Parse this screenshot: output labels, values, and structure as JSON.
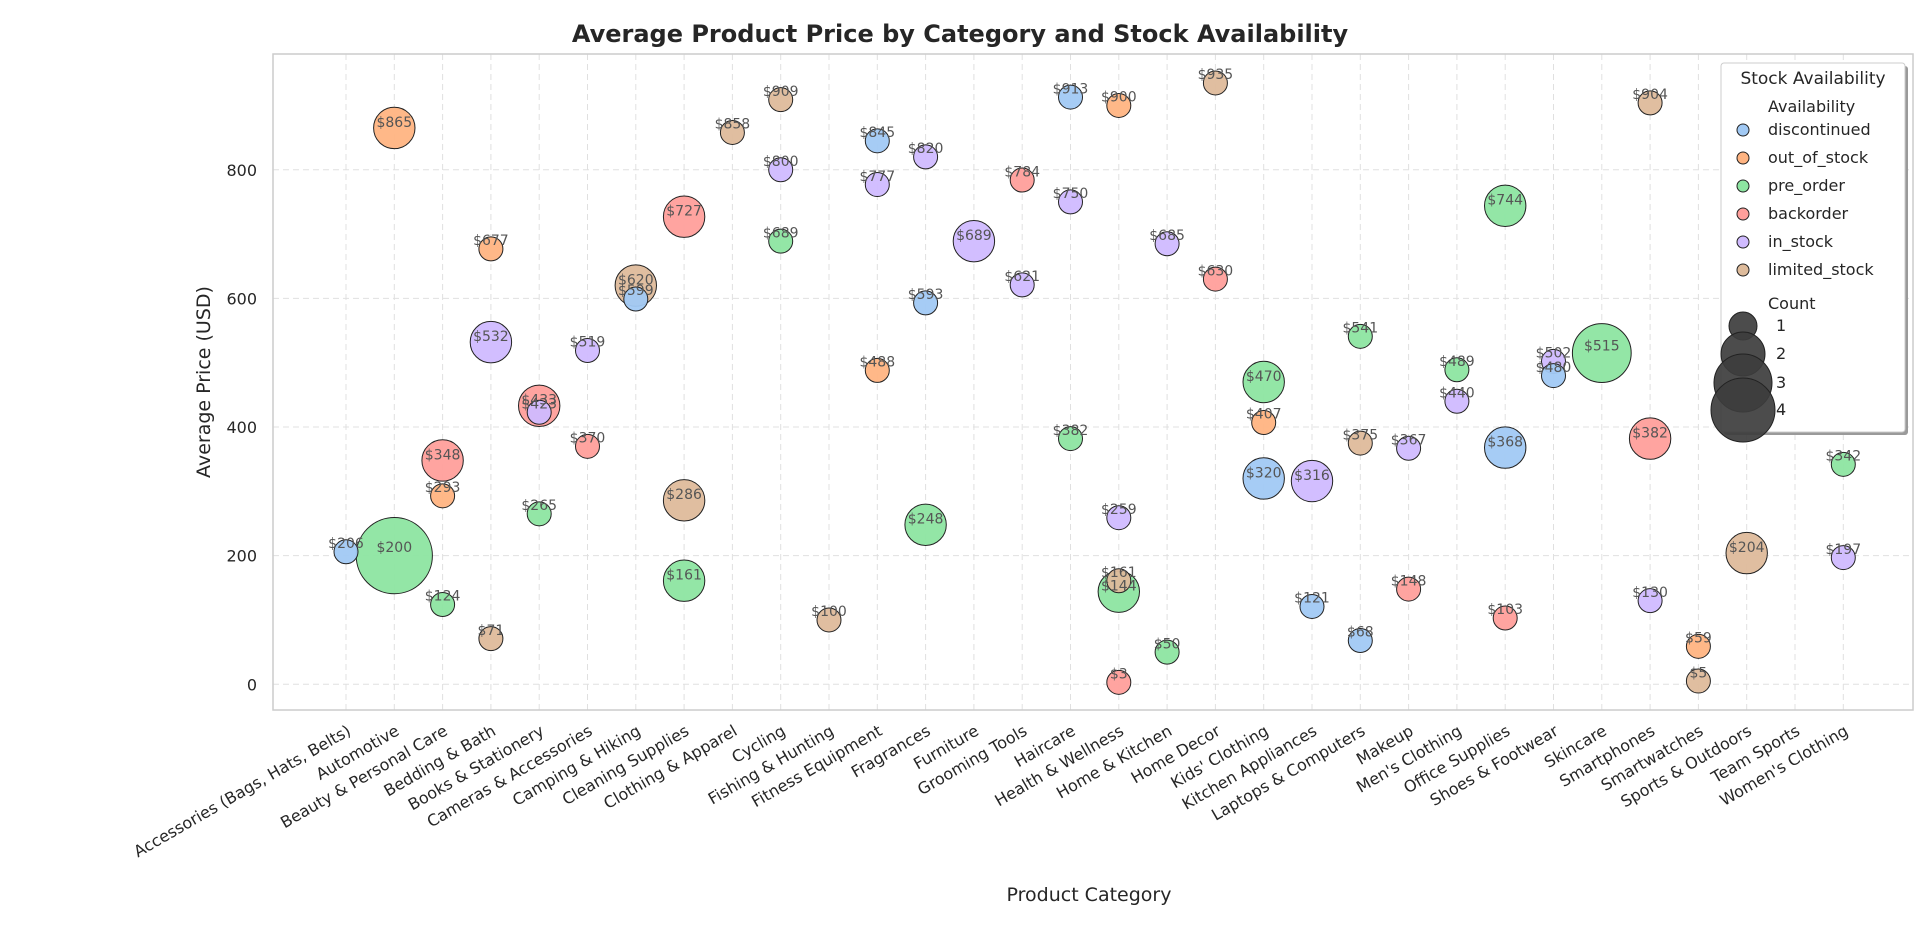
{
  "chart_data": {
    "type": "scatter",
    "title": "Average Product Price by Category and Stock Availability",
    "xlabel": "Product Category",
    "ylabel": "Average Price (USD)",
    "ylim": [
      -40,
      980
    ],
    "yticks": [
      0,
      200,
      400,
      600,
      800
    ],
    "grid": true,
    "legend_placement": "top-right",
    "categories": [
      "Accessories (Bags, Hats, Belts)",
      "Automotive",
      "Beauty & Personal Care",
      "Bedding & Bath",
      "Books & Stationery",
      "Cameras & Accessories",
      "Camping & Hiking",
      "Cleaning Supplies",
      "Clothing & Apparel",
      "Cycling",
      "Fishing & Hunting",
      "Fitness Equipment",
      "Fragrances",
      "Furniture",
      "Grooming Tools",
      "Haircare",
      "Health & Wellness",
      "Home & Kitchen",
      "Home Decor",
      "Kids' Clothing",
      "Kitchen Appliances",
      "Laptops & Computers",
      "Makeup",
      "Men's Clothing",
      "Office Supplies",
      "Shoes & Footwear",
      "Skincare",
      "Smartphones",
      "Smartwatches",
      "Sports & Outdoors",
      "Team Sports",
      "Women's Clothing"
    ],
    "legend": {
      "title": "Stock Availability",
      "hue_title": "Availability",
      "size_title": "Count",
      "hue_entries": [
        {
          "name": "discontinued",
          "color": "#a1c9f4"
        },
        {
          "name": "out_of_stock",
          "color": "#ffb482"
        },
        {
          "name": "pre_order",
          "color": "#8de5a1"
        },
        {
          "name": "backorder",
          "color": "#ff9f9b"
        },
        {
          "name": "in_stock",
          "color": "#d0bbff"
        },
        {
          "name": "limited_stock",
          "color": "#debb9b"
        }
      ],
      "size_entries": [
        "1",
        "2",
        "3",
        "4"
      ]
    },
    "points": [
      {
        "x": "Accessories (Bags, Hats, Belts)",
        "y": 206,
        "status": "discontinued",
        "count": 1,
        "label": "$206"
      },
      {
        "x": "Automotive",
        "y": 865,
        "status": "out_of_stock",
        "count": 2,
        "label": "$865"
      },
      {
        "x": "Automotive",
        "y": 200,
        "status": "pre_order",
        "count": 4,
        "label": "$200"
      },
      {
        "x": "Beauty & Personal Care",
        "y": 348,
        "status": "backorder",
        "count": 2,
        "label": "$348"
      },
      {
        "x": "Beauty & Personal Care",
        "y": 293,
        "status": "out_of_stock",
        "count": 1,
        "label": "$293"
      },
      {
        "x": "Beauty & Personal Care",
        "y": 124,
        "status": "pre_order",
        "count": 1,
        "label": "$124"
      },
      {
        "x": "Bedding & Bath",
        "y": 677,
        "status": "out_of_stock",
        "count": 1,
        "label": "$677"
      },
      {
        "x": "Bedding & Bath",
        "y": 532,
        "status": "in_stock",
        "count": 2,
        "label": "$532"
      },
      {
        "x": "Bedding & Bath",
        "y": 71,
        "status": "limited_stock",
        "count": 1,
        "label": "$71"
      },
      {
        "x": "Books & Stationery",
        "y": 433,
        "status": "backorder",
        "count": 2,
        "label": "$433"
      },
      {
        "x": "Books & Stationery",
        "y": 423,
        "status": "in_stock",
        "count": 1,
        "label": "$423"
      },
      {
        "x": "Books & Stationery",
        "y": 265,
        "status": "pre_order",
        "count": 1,
        "label": "$265"
      },
      {
        "x": "Cameras & Accessories",
        "y": 519,
        "status": "in_stock",
        "count": 1,
        "label": "$519"
      },
      {
        "x": "Cameras & Accessories",
        "y": 370,
        "status": "backorder",
        "count": 1,
        "label": "$370"
      },
      {
        "x": "Camping & Hiking",
        "y": 620,
        "status": "limited_stock",
        "count": 2,
        "label": "$620"
      },
      {
        "x": "Camping & Hiking",
        "y": 599,
        "status": "discontinued",
        "count": 1,
        "label": "$599"
      },
      {
        "x": "Cleaning Supplies",
        "y": 727,
        "status": "backorder",
        "count": 2,
        "label": "$727"
      },
      {
        "x": "Cleaning Supplies",
        "y": 286,
        "status": "limited_stock",
        "count": 2,
        "label": "$286"
      },
      {
        "x": "Cleaning Supplies",
        "y": 161,
        "status": "pre_order",
        "count": 2,
        "label": "$161"
      },
      {
        "x": "Clothing & Apparel",
        "y": 858,
        "status": "limited_stock",
        "count": 1,
        "label": "$858"
      },
      {
        "x": "Cycling",
        "y": 909,
        "status": "limited_stock",
        "count": 1,
        "label": "$909"
      },
      {
        "x": "Cycling",
        "y": 800,
        "status": "in_stock",
        "count": 1,
        "label": "$800"
      },
      {
        "x": "Cycling",
        "y": 689,
        "status": "pre_order",
        "count": 1,
        "label": "$689"
      },
      {
        "x": "Fishing & Hunting",
        "y": 100,
        "status": "limited_stock",
        "count": 1,
        "label": "$100"
      },
      {
        "x": "Fitness Equipment",
        "y": 845,
        "status": "discontinued",
        "count": 1,
        "label": "$845"
      },
      {
        "x": "Fitness Equipment",
        "y": 777,
        "status": "in_stock",
        "count": 1,
        "label": "$777"
      },
      {
        "x": "Fitness Equipment",
        "y": 488,
        "status": "out_of_stock",
        "count": 1,
        "label": "$488"
      },
      {
        "x": "Fragrances",
        "y": 820,
        "status": "in_stock",
        "count": 1,
        "label": "$820"
      },
      {
        "x": "Fragrances",
        "y": 593,
        "status": "discontinued",
        "count": 1,
        "label": "$593"
      },
      {
        "x": "Fragrances",
        "y": 248,
        "status": "pre_order",
        "count": 2,
        "label": "$248"
      },
      {
        "x": "Furniture",
        "y": 689,
        "status": "in_stock",
        "count": 2,
        "label": "$689"
      },
      {
        "x": "Grooming Tools",
        "y": 784,
        "status": "backorder",
        "count": 1,
        "label": "$784"
      },
      {
        "x": "Grooming Tools",
        "y": 621,
        "status": "in_stock",
        "count": 1,
        "label": "$621"
      },
      {
        "x": "Haircare",
        "y": 913,
        "status": "discontinued",
        "count": 1,
        "label": "$913"
      },
      {
        "x": "Haircare",
        "y": 750,
        "status": "in_stock",
        "count": 1,
        "label": "$750"
      },
      {
        "x": "Haircare",
        "y": 382,
        "status": "pre_order",
        "count": 1,
        "label": "$382"
      },
      {
        "x": "Health & Wellness",
        "y": 900,
        "status": "out_of_stock",
        "count": 1,
        "label": "$900"
      },
      {
        "x": "Health & Wellness",
        "y": 259,
        "status": "in_stock",
        "count": 1,
        "label": "$259"
      },
      {
        "x": "Health & Wellness",
        "y": 161,
        "status": "limited_stock",
        "count": 1,
        "label": "$161"
      },
      {
        "x": "Health & Wellness",
        "y": 144,
        "status": "pre_order",
        "count": 2,
        "label": "$144"
      },
      {
        "x": "Health & Wellness",
        "y": 3,
        "status": "backorder",
        "count": 1,
        "label": "$3"
      },
      {
        "x": "Home & Kitchen",
        "y": 685,
        "status": "in_stock",
        "count": 1,
        "label": "$685"
      },
      {
        "x": "Home & Kitchen",
        "y": 50,
        "status": "pre_order",
        "count": 1,
        "label": "$50"
      },
      {
        "x": "Home Decor",
        "y": 935,
        "status": "limited_stock",
        "count": 1,
        "label": "$935"
      },
      {
        "x": "Home Decor",
        "y": 630,
        "status": "backorder",
        "count": 1,
        "label": "$630"
      },
      {
        "x": "Kids' Clothing",
        "y": 470,
        "status": "pre_order",
        "count": 2,
        "label": "$470"
      },
      {
        "x": "Kids' Clothing",
        "y": 407,
        "status": "out_of_stock",
        "count": 1,
        "label": "$407"
      },
      {
        "x": "Kids' Clothing",
        "y": 320,
        "status": "discontinued",
        "count": 2,
        "label": "$320"
      },
      {
        "x": "Kitchen Appliances",
        "y": 316,
        "status": "in_stock",
        "count": 2,
        "label": "$316"
      },
      {
        "x": "Kitchen Appliances",
        "y": 121,
        "status": "discontinued",
        "count": 1,
        "label": "$121"
      },
      {
        "x": "Laptops & Computers",
        "y": 541,
        "status": "pre_order",
        "count": 1,
        "label": "$541"
      },
      {
        "x": "Laptops & Computers",
        "y": 375,
        "status": "limited_stock",
        "count": 1,
        "label": "$375"
      },
      {
        "x": "Laptops & Computers",
        "y": 68,
        "status": "discontinued",
        "count": 1,
        "label": "$68"
      },
      {
        "x": "Makeup",
        "y": 367,
        "status": "in_stock",
        "count": 1,
        "label": "$367"
      },
      {
        "x": "Makeup",
        "y": 148,
        "status": "backorder",
        "count": 1,
        "label": "$148"
      },
      {
        "x": "Men's Clothing",
        "y": 489,
        "status": "pre_order",
        "count": 1,
        "label": "$489"
      },
      {
        "x": "Men's Clothing",
        "y": 440,
        "status": "in_stock",
        "count": 1,
        "label": "$440"
      },
      {
        "x": "Office Supplies",
        "y": 744,
        "status": "pre_order",
        "count": 2,
        "label": "$744"
      },
      {
        "x": "Office Supplies",
        "y": 368,
        "status": "discontinued",
        "count": 2,
        "label": "$368"
      },
      {
        "x": "Office Supplies",
        "y": 103,
        "status": "backorder",
        "count": 1,
        "label": "$103"
      },
      {
        "x": "Shoes & Footwear",
        "y": 502,
        "status": "in_stock",
        "count": 1,
        "label": "$502"
      },
      {
        "x": "Shoes & Footwear",
        "y": 480,
        "status": "discontinued",
        "count": 1,
        "label": "$480"
      },
      {
        "x": "Skincare",
        "y": 515,
        "status": "pre_order",
        "count": 3,
        "label": "$515"
      },
      {
        "x": "Smartphones",
        "y": 904,
        "status": "limited_stock",
        "count": 1,
        "label": "$904"
      },
      {
        "x": "Smartphones",
        "y": 382,
        "status": "backorder",
        "count": 2,
        "label": "$382"
      },
      {
        "x": "Smartphones",
        "y": 130,
        "status": "in_stock",
        "count": 1,
        "label": "$130"
      },
      {
        "x": "Smartwatches",
        "y": 59,
        "status": "out_of_stock",
        "count": 1,
        "label": "$59"
      },
      {
        "x": "Smartwatches",
        "y": 5,
        "status": "limited_stock",
        "count": 1,
        "label": "$5"
      },
      {
        "x": "Sports & Outdoors",
        "y": 204,
        "status": "limited_stock",
        "count": 2,
        "label": "$204"
      },
      {
        "x": "Women's Clothing",
        "y": 342,
        "status": "pre_order",
        "count": 1,
        "label": "$342"
      },
      {
        "x": "Women's Clothing",
        "y": 197,
        "status": "in_stock",
        "count": 1,
        "label": "$197"
      }
    ]
  }
}
